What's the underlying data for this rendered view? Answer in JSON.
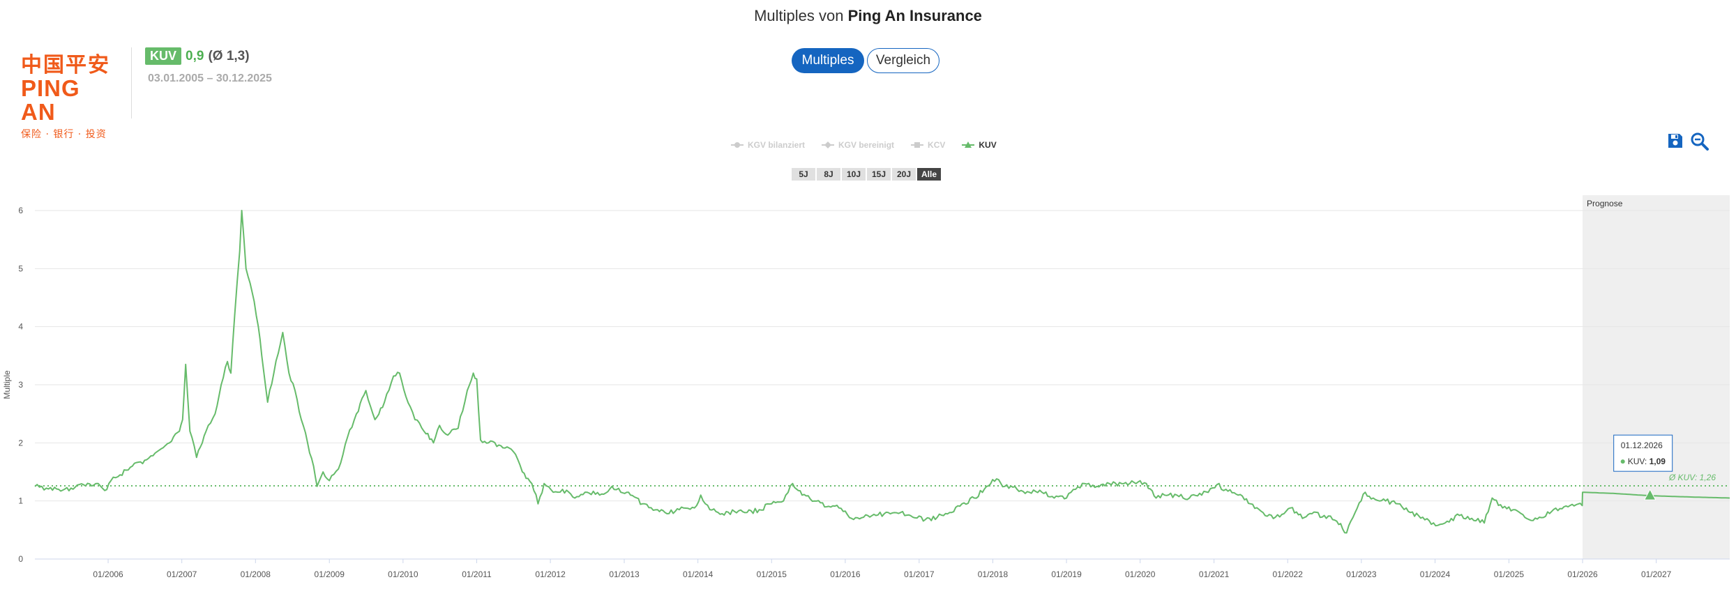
{
  "header": {
    "title_prefix": "Multiples von",
    "company": "Ping An Insurance"
  },
  "logo": {
    "chinese": "中国平安",
    "english": "PING AN",
    "tagline": "保险 · 银行 · 投资"
  },
  "metric": {
    "badge": "KUV",
    "value": "0,9",
    "average": "(Ø 1,3)",
    "date_range": "03.01.2005 – 30.12.2025"
  },
  "tabs": [
    {
      "label": "Multiples",
      "active": true
    },
    {
      "label": "Vergleich",
      "active": false
    }
  ],
  "legend": [
    {
      "label": "KGV bilanziert",
      "active": false,
      "icon": "circle-line-icon"
    },
    {
      "label": "KGV bereinigt",
      "active": false,
      "icon": "diamond-line-icon"
    },
    {
      "label": "KCV",
      "active": false,
      "icon": "square-line-icon"
    },
    {
      "label": "KUV",
      "active": true,
      "icon": "triangle-line-icon"
    }
  ],
  "range_buttons": [
    "5J",
    "8J",
    "10J",
    "15J",
    "20J",
    "Alle"
  ],
  "selected_range": "Alle",
  "tools": {
    "save_icon": "save-icon",
    "zoom_icon": "zoom-out-icon"
  },
  "colors": {
    "series": "#66bb6a",
    "accent": "#1565c0",
    "forecast_band": "#efefef"
  },
  "chart_data": {
    "type": "line",
    "ylabel": "Multiple",
    "ylim": [
      0,
      6
    ],
    "yticks": [
      "0",
      "1",
      "2",
      "3",
      "4",
      "5",
      "6"
    ],
    "xlim": [
      "2005-01-03",
      "2027-12-31"
    ],
    "xticks": [
      "01/2006",
      "01/2007",
      "01/2008",
      "01/2009",
      "01/2010",
      "01/2011",
      "01/2012",
      "01/2013",
      "01/2014",
      "01/2015",
      "01/2016",
      "01/2017",
      "01/2018",
      "01/2019",
      "01/2020",
      "01/2021",
      "01/2022",
      "01/2023",
      "01/2024",
      "01/2025",
      "01/2026",
      "01/2027"
    ],
    "forecast_label": "Prognose",
    "forecast_start": "2026-01-01",
    "average_label": "Ø KUV: 1,26",
    "average_value": 1.26,
    "tooltip": {
      "date": "01.12.2026",
      "label": "KUV:",
      "value": "1,09"
    },
    "series": [
      {
        "name": "KUV",
        "points": [
          [
            "2005-01-03",
            1.25
          ],
          [
            "2005-03-01",
            1.22
          ],
          [
            "2005-05-01",
            1.2
          ],
          [
            "2005-07-01",
            1.22
          ],
          [
            "2005-09-01",
            1.28
          ],
          [
            "2005-11-01",
            1.3
          ],
          [
            "2005-12-15",
            1.18
          ],
          [
            "2006-01-15",
            1.35
          ],
          [
            "2006-03-01",
            1.45
          ],
          [
            "2006-05-01",
            1.6
          ],
          [
            "2006-07-01",
            1.7
          ],
          [
            "2006-09-01",
            1.85
          ],
          [
            "2006-11-01",
            2.0
          ],
          [
            "2006-12-20",
            2.2
          ],
          [
            "2007-01-05",
            2.4
          ],
          [
            "2007-01-20",
            3.35
          ],
          [
            "2007-02-10",
            2.2
          ],
          [
            "2007-03-15",
            1.75
          ],
          [
            "2007-05-01",
            2.2
          ],
          [
            "2007-06-15",
            2.5
          ],
          [
            "2007-07-15",
            3.0
          ],
          [
            "2007-08-15",
            3.4
          ],
          [
            "2007-09-01",
            3.2
          ],
          [
            "2007-09-20",
            4.2
          ],
          [
            "2007-10-15",
            5.3
          ],
          [
            "2007-10-25",
            6.0
          ],
          [
            "2007-11-15",
            5.0
          ],
          [
            "2007-12-15",
            4.6
          ],
          [
            "2008-01-15",
            4.0
          ],
          [
            "2008-02-01",
            3.5
          ],
          [
            "2008-03-01",
            2.7
          ],
          [
            "2008-04-01",
            3.2
          ],
          [
            "2008-05-15",
            3.9
          ],
          [
            "2008-06-15",
            3.2
          ],
          [
            "2008-07-15",
            2.9
          ],
          [
            "2008-08-15",
            2.4
          ],
          [
            "2008-09-15",
            2.0
          ],
          [
            "2008-10-15",
            1.6
          ],
          [
            "2008-11-01",
            1.25
          ],
          [
            "2008-12-01",
            1.5
          ],
          [
            "2009-01-01",
            1.35
          ],
          [
            "2009-02-15",
            1.55
          ],
          [
            "2009-04-01",
            2.1
          ],
          [
            "2009-05-15",
            2.5
          ],
          [
            "2009-07-01",
            2.9
          ],
          [
            "2009-08-15",
            2.4
          ],
          [
            "2009-10-01",
            2.7
          ],
          [
            "2009-11-15",
            3.15
          ],
          [
            "2009-12-15",
            3.2
          ],
          [
            "2010-01-15",
            2.8
          ],
          [
            "2010-03-01",
            2.4
          ],
          [
            "2010-04-15",
            2.2
          ],
          [
            "2010-06-01",
            2.0
          ],
          [
            "2010-07-01",
            2.3
          ],
          [
            "2010-08-01",
            2.15
          ],
          [
            "2010-10-01",
            2.25
          ],
          [
            "2010-11-15",
            2.9
          ],
          [
            "2010-12-15",
            3.2
          ],
          [
            "2011-01-01",
            3.1
          ],
          [
            "2011-01-20",
            2.05
          ],
          [
            "2011-03-01",
            2.0
          ],
          [
            "2011-05-01",
            1.95
          ],
          [
            "2011-07-01",
            1.85
          ],
          [
            "2011-08-15",
            1.5
          ],
          [
            "2011-10-01",
            1.3
          ],
          [
            "2011-11-01",
            0.95
          ],
          [
            "2011-12-01",
            1.3
          ],
          [
            "2012-01-15",
            1.15
          ],
          [
            "2012-03-01",
            1.2
          ],
          [
            "2012-05-01",
            1.05
          ],
          [
            "2012-07-01",
            1.15
          ],
          [
            "2012-09-01",
            1.1
          ],
          [
            "2012-11-01",
            1.25
          ],
          [
            "2012-12-15",
            1.15
          ],
          [
            "2013-02-01",
            1.1
          ],
          [
            "2013-04-01",
            0.95
          ],
          [
            "2013-06-15",
            0.85
          ],
          [
            "2013-08-01",
            0.78
          ],
          [
            "2013-10-01",
            0.85
          ],
          [
            "2013-12-15",
            0.88
          ],
          [
            "2014-01-15",
            1.1
          ],
          [
            "2014-03-01",
            0.85
          ],
          [
            "2014-05-01",
            0.78
          ],
          [
            "2014-07-01",
            0.82
          ],
          [
            "2014-09-01",
            0.8
          ],
          [
            "2014-11-01",
            0.85
          ],
          [
            "2015-01-01",
            0.95
          ],
          [
            "2015-03-01",
            1.0
          ],
          [
            "2015-04-15",
            1.3
          ],
          [
            "2015-06-01",
            1.1
          ],
          [
            "2015-08-01",
            1.0
          ],
          [
            "2015-10-01",
            0.9
          ],
          [
            "2015-12-01",
            0.88
          ],
          [
            "2016-02-01",
            0.7
          ],
          [
            "2016-04-01",
            0.72
          ],
          [
            "2016-06-01",
            0.75
          ],
          [
            "2016-08-01",
            0.8
          ],
          [
            "2016-10-01",
            0.8
          ],
          [
            "2016-12-01",
            0.72
          ],
          [
            "2017-02-01",
            0.68
          ],
          [
            "2017-04-01",
            0.72
          ],
          [
            "2017-06-01",
            0.8
          ],
          [
            "2017-08-01",
            0.95
          ],
          [
            "2017-10-01",
            1.05
          ],
          [
            "2017-12-01",
            1.25
          ],
          [
            "2018-01-20",
            1.38
          ],
          [
            "2018-03-01",
            1.25
          ],
          [
            "2018-05-01",
            1.2
          ],
          [
            "2018-07-01",
            1.15
          ],
          [
            "2018-09-01",
            1.15
          ],
          [
            "2018-11-01",
            1.05
          ],
          [
            "2019-01-01",
            1.05
          ],
          [
            "2019-02-15",
            1.2
          ],
          [
            "2019-04-01",
            1.3
          ],
          [
            "2019-06-01",
            1.25
          ],
          [
            "2019-08-01",
            1.3
          ],
          [
            "2019-10-01",
            1.3
          ],
          [
            "2019-12-01",
            1.32
          ],
          [
            "2020-02-01",
            1.3
          ],
          [
            "2020-03-20",
            1.05
          ],
          [
            "2020-05-01",
            1.1
          ],
          [
            "2020-07-01",
            1.1
          ],
          [
            "2020-09-01",
            1.05
          ],
          [
            "2020-11-01",
            1.1
          ],
          [
            "2021-01-15",
            1.28
          ],
          [
            "2021-03-01",
            1.2
          ],
          [
            "2021-05-01",
            1.1
          ],
          [
            "2021-07-01",
            0.95
          ],
          [
            "2021-09-01",
            0.8
          ],
          [
            "2021-11-01",
            0.72
          ],
          [
            "2022-01-15",
            0.88
          ],
          [
            "2022-03-15",
            0.7
          ],
          [
            "2022-05-01",
            0.78
          ],
          [
            "2022-07-01",
            0.75
          ],
          [
            "2022-09-01",
            0.65
          ],
          [
            "2022-10-20",
            0.45
          ],
          [
            "2022-12-01",
            0.8
          ],
          [
            "2023-01-20",
            1.15
          ],
          [
            "2023-03-01",
            1.05
          ],
          [
            "2023-05-01",
            1.0
          ],
          [
            "2023-07-01",
            0.95
          ],
          [
            "2023-09-01",
            0.8
          ],
          [
            "2023-11-01",
            0.72
          ],
          [
            "2024-01-15",
            0.58
          ],
          [
            "2024-03-01",
            0.65
          ],
          [
            "2024-05-01",
            0.75
          ],
          [
            "2024-07-01",
            0.7
          ],
          [
            "2024-09-01",
            0.62
          ],
          [
            "2024-10-10",
            1.05
          ],
          [
            "2024-12-01",
            0.88
          ],
          [
            "2025-02-01",
            0.85
          ],
          [
            "2025-04-10",
            0.68
          ],
          [
            "2025-06-01",
            0.72
          ],
          [
            "2025-08-01",
            0.82
          ],
          [
            "2025-10-01",
            0.9
          ],
          [
            "2025-12-30",
            0.92
          ],
          [
            "2026-01-01",
            1.15
          ],
          [
            "2026-06-01",
            1.13
          ],
          [
            "2026-12-01",
            1.09
          ],
          [
            "2027-06-01",
            1.07
          ],
          [
            "2027-12-31",
            1.05
          ]
        ]
      }
    ]
  }
}
